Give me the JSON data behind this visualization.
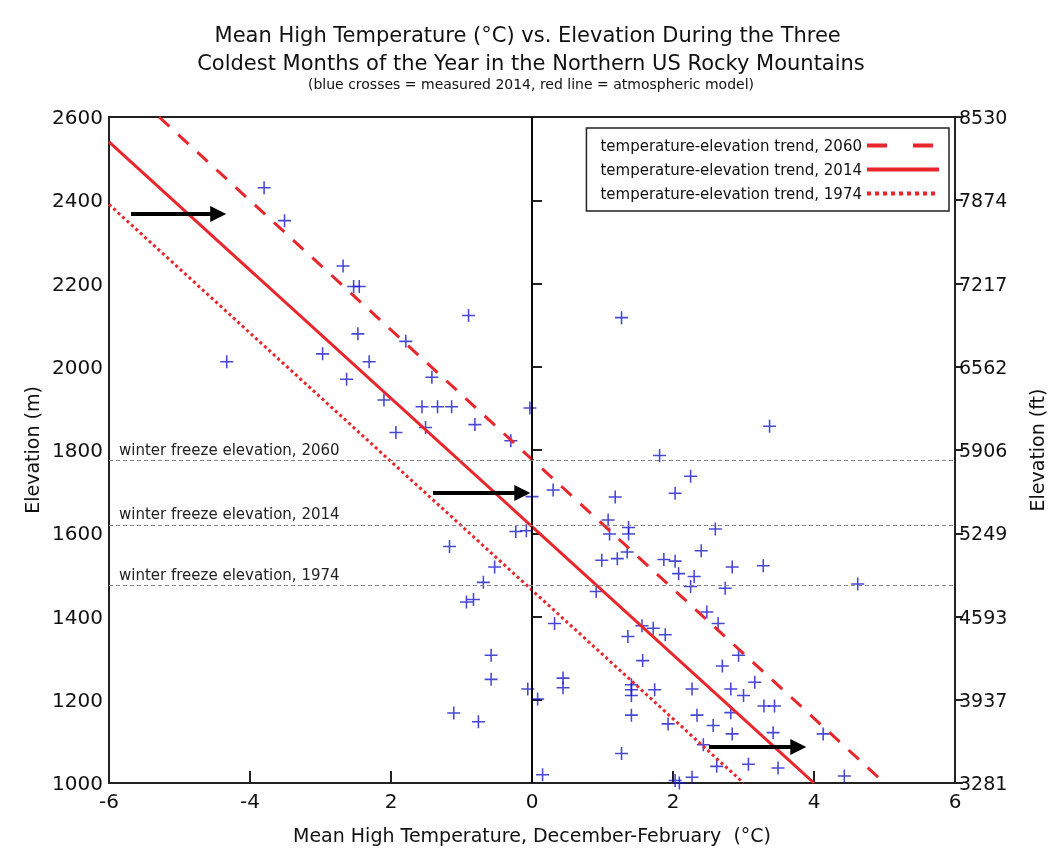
{
  "chart_data": {
    "type": "scatter",
    "title": "Mean High Temperature (°C) vs. Elevation During the Three Coldest Months of the Year in the Northern US Rocky Mountains",
    "subtitle": "(blue crosses = measured 2014, red line = atmospheric model)",
    "xlabel": "Mean High Temperature, December-February  (°C)",
    "ylabel": "Elevation (m)",
    "y2label": "Elevation (ft)",
    "xlim": [
      -6,
      6
    ],
    "xticks": [
      -6,
      -4,
      {
        "value": -2,
        "label": "2"
      },
      0,
      2,
      4,
      6
    ],
    "ylim": [
      1000,
      2600
    ],
    "yticks": [
      1000,
      1200,
      1400,
      1600,
      1800,
      2000,
      2200,
      2400,
      2600
    ],
    "y2lim": [
      3281,
      8530
    ],
    "y2ticks": [
      3281,
      3937,
      4593,
      5249,
      5906,
      6562,
      7217,
      7874,
      8530
    ],
    "grid": false,
    "legend": "top right",
    "marker": "cross",
    "series": [
      {
        "color": "#1a1acc",
        "x": [
          -3.8,
          -3.51,
          -2.68,
          -2.53,
          -2.45,
          -0.9,
          -4.33,
          -2.97,
          -2.47,
          -2.31,
          -1.79,
          -2.63,
          -2.1,
          -1.42,
          -1.56,
          -1.34,
          -1.14,
          -1.93,
          -1.51,
          -0.81,
          -0.3,
          -0.03,
          1.27,
          3.37,
          -1.17,
          -0.53,
          -0.69,
          -0.93,
          -0.83,
          -0.58,
          -0.58,
          -1.11,
          -0.76,
          -0.06,
          -0.23,
          -0.08,
          0.0,
          1.81,
          2.25,
          0.3,
          2.03,
          1.18,
          1.08,
          1.1,
          1.37,
          1.37,
          2.6,
          2.4,
          1.35,
          0.99,
          1.21,
          1.87,
          2.03,
          2.84,
          3.28,
          2.08,
          2.3,
          2.25,
          2.74,
          4.62,
          0.91,
          0.32,
          2.48,
          2.64,
          1.56,
          1.72,
          1.89,
          1.36,
          1.57,
          2.93,
          2.7,
          0.44,
          0.44,
          1.41,
          1.41,
          1.41,
          3.16,
          1.74,
          2.27,
          2.82,
          3.0,
          0.08,
          3.29,
          3.44,
          1.41,
          2.34,
          2.82,
          1.93,
          2.57,
          2.84,
          3.42,
          4.13,
          2.43,
          1.27,
          2.62,
          3.07,
          3.49,
          4.43,
          0.15,
          2.27,
          2.03,
          2.09
        ],
        "values": [
          2430,
          2351,
          2242,
          2193,
          2193,
          2123,
          2012,
          2031,
          2079,
          2012,
          2061,
          1970,
          1920,
          1975,
          1904,
          1904,
          1904,
          1842,
          1854,
          1861,
          1822,
          1901,
          2118,
          1857,
          1568,
          1519,
          1482,
          1435,
          1441,
          1307,
          1249,
          1168,
          1147,
          1226,
          1604,
          1606,
          1688,
          1787,
          1737,
          1704,
          1696,
          1687,
          1632,
          1598,
          1614,
          1598,
          1610,
          1558,
          1555,
          1535,
          1539,
          1537,
          1533,
          1519,
          1522,
          1503,
          1496,
          1472,
          1468,
          1478,
          1460,
          1383,
          1411,
          1383,
          1378,
          1372,
          1356,
          1352,
          1294,
          1307,
          1281,
          1252,
          1229,
          1236,
          1224,
          1210,
          1242,
          1224,
          1226,
          1226,
          1210,
          1202,
          1185,
          1185,
          1163,
          1163,
          1169,
          1142,
          1138,
          1118,
          1121,
          1118,
          1092,
          1071,
          1040,
          1045,
          1036,
          1017,
          1020,
          1014,
          1006,
          1000
        ]
      },
      {
        "type": "line",
        "name": "temperature-elevation trend, 2060",
        "color": "#e8262b",
        "line_style": "dashed",
        "marker": "none",
        "x": [
          -5.29,
          5.0
        ],
        "values": [
          2600,
          1000
        ]
      },
      {
        "type": "line",
        "name": "temperature-elevation trend, 2014",
        "color": "#e8262b",
        "line_style": "solid",
        "marker": "none",
        "x": [
          -6,
          4.0
        ],
        "values": [
          2540,
          1000
        ]
      },
      {
        "type": "line",
        "name": "temperature-elevation trend, 1974",
        "color": "#e8262b",
        "line_style": "dotted",
        "marker": "none",
        "x": [
          -6,
          3.0
        ],
        "values": [
          2390,
          1000
        ]
      }
    ],
    "ref_lines": [
      {
        "axis": "x",
        "value": 0,
        "label": null,
        "color": "#000000",
        "line_style": "solid"
      },
      {
        "axis": "y",
        "value": 1775,
        "label": "winter freeze elevation, 2060",
        "color": "#888888",
        "line_style": "dashed"
      },
      {
        "axis": "y",
        "value": 1620,
        "label": "winter freeze elevation, 2014",
        "color": "#888888",
        "line_style": "dashed"
      },
      {
        "axis": "y",
        "value": 1475,
        "label": "winter freeze elevation, 1974",
        "color": "#888888",
        "line_style": "dashed"
      }
    ]
  }
}
